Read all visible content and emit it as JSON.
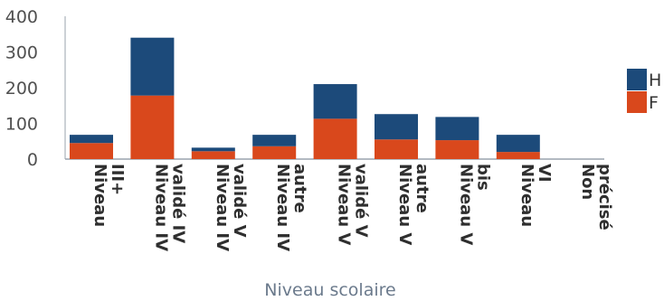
{
  "chart_data": {
    "type": "bar",
    "stacked": true,
    "categories": [
      [
        "Niveau",
        "III+"
      ],
      [
        "Niveau IV",
        "validé IV"
      ],
      [
        "Niveau IV",
        "validé V"
      ],
      [
        "Niveau IV",
        "autre"
      ],
      [
        "Niveau V",
        "validé V"
      ],
      [
        "Niveau V",
        "autre"
      ],
      [
        "Niveau V",
        "bis"
      ],
      [
        "Niveau",
        "VI"
      ],
      [
        "Non",
        "précisé"
      ]
    ],
    "series": [
      {
        "name": "F",
        "color": "#d9481c",
        "values": [
          45,
          178,
          22,
          36,
          113,
          55,
          53,
          20,
          0
        ]
      },
      {
        "name": "H",
        "color": "#1c4a7a",
        "values": [
          23,
          162,
          10,
          32,
          97,
          71,
          65,
          48,
          0
        ]
      }
    ],
    "xlabel": "Niveau scolaire",
    "ylabel": "",
    "ylim": [
      0,
      400
    ],
    "yticks": [
      0,
      100,
      200,
      300,
      400
    ],
    "grid": false,
    "legend_position": "right"
  }
}
